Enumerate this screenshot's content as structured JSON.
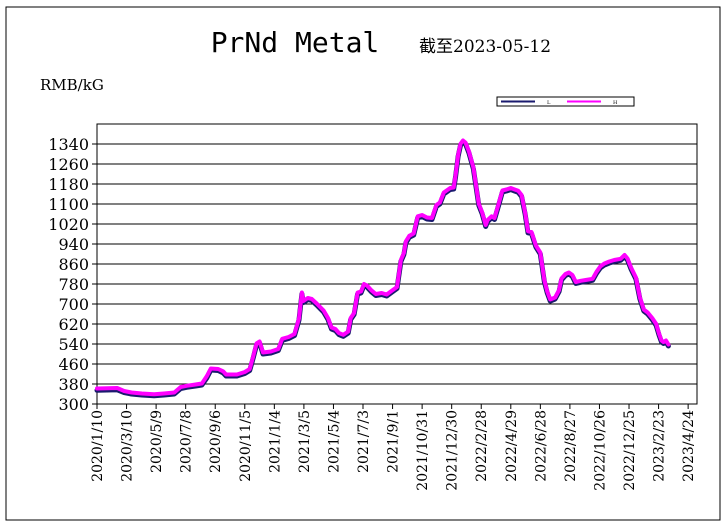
{
  "chart_data": {
    "type": "line",
    "title": "PrNd Metal",
    "subtitle": "截至2023-05-12",
    "ylabel": "RMB/kG",
    "ylim": [
      300,
      1420
    ],
    "yticks": [
      300,
      380,
      460,
      540,
      620,
      700,
      780,
      860,
      940,
      1020,
      1100,
      1180,
      1260,
      1340
    ],
    "xlim": [
      "2020-01-10",
      "2023-05-12"
    ],
    "xticks": [
      "2020/1/10",
      "2020/3/10",
      "2020/5/9",
      "2020/7/8",
      "2020/9/6",
      "2020/11/5",
      "2021/1/4",
      "2021/3/5",
      "2021/5/4",
      "2021/7/3",
      "2021/9/1",
      "2021/10/31",
      "2021/12/30",
      "2022/2/28",
      "2022/4/29",
      "2022/6/28",
      "2022/8/27",
      "2022/10/26",
      "2022/12/25",
      "2023/2/23",
      "2023/4/24"
    ],
    "grid": true,
    "legend_position": "top-right",
    "series": [
      {
        "name": "L",
        "color": "#1a1a6e",
        "points": [
          [
            "2020-01-10",
            355
          ],
          [
            "2020-02-20",
            357
          ],
          [
            "2020-03-05",
            346
          ],
          [
            "2020-03-20",
            340
          ],
          [
            "2020-04-10",
            336
          ],
          [
            "2020-05-05",
            333
          ],
          [
            "2020-05-25",
            336
          ],
          [
            "2020-06-15",
            340
          ],
          [
            "2020-06-28",
            362
          ],
          [
            "2020-07-10",
            367
          ],
          [
            "2020-07-28",
            372
          ],
          [
            "2020-08-10",
            376
          ],
          [
            "2020-08-20",
            405
          ],
          [
            "2020-08-28",
            436
          ],
          [
            "2020-09-12",
            434
          ],
          [
            "2020-09-22",
            425
          ],
          [
            "2020-09-28",
            412
          ],
          [
            "2020-10-20",
            412
          ],
          [
            "2020-11-05",
            422
          ],
          [
            "2020-11-15",
            434
          ],
          [
            "2020-11-22",
            484
          ],
          [
            "2020-11-29",
            537
          ],
          [
            "2020-12-05",
            544
          ],
          [
            "2020-12-12",
            500
          ],
          [
            "2020-12-28",
            504
          ],
          [
            "2021-01-12",
            514
          ],
          [
            "2021-01-20",
            555
          ],
          [
            "2021-02-02",
            562
          ],
          [
            "2021-02-14",
            574
          ],
          [
            "2021-02-23",
            636
          ],
          [
            "2021-03-01",
            740
          ],
          [
            "2021-03-04",
            706
          ],
          [
            "2021-03-13",
            718
          ],
          [
            "2021-03-21",
            714
          ],
          [
            "2021-03-31",
            696
          ],
          [
            "2021-04-14",
            668
          ],
          [
            "2021-04-23",
            638
          ],
          [
            "2021-04-30",
            600
          ],
          [
            "2021-05-08",
            594
          ],
          [
            "2021-05-15",
            578
          ],
          [
            "2021-05-24",
            571
          ],
          [
            "2021-06-03",
            584
          ],
          [
            "2021-06-08",
            638
          ],
          [
            "2021-06-15",
            658
          ],
          [
            "2021-06-22",
            740
          ],
          [
            "2021-06-29",
            744
          ],
          [
            "2021-07-05",
            774
          ],
          [
            "2021-07-11",
            768
          ],
          [
            "2021-07-20",
            749
          ],
          [
            "2021-07-29",
            734
          ],
          [
            "2021-08-10",
            738
          ],
          [
            "2021-08-20",
            732
          ],
          [
            "2021-08-31",
            748
          ],
          [
            "2021-09-10",
            762
          ],
          [
            "2021-09-18",
            870
          ],
          [
            "2021-09-24",
            898
          ],
          [
            "2021-09-28",
            945
          ],
          [
            "2021-10-05",
            967
          ],
          [
            "2021-10-14",
            976
          ],
          [
            "2021-10-22",
            1045
          ],
          [
            "2021-10-31",
            1050
          ],
          [
            "2021-11-10",
            1040
          ],
          [
            "2021-11-20",
            1038
          ],
          [
            "2021-11-29",
            1090
          ],
          [
            "2021-12-06",
            1100
          ],
          [
            "2021-12-14",
            1140
          ],
          [
            "2021-12-27",
            1158
          ],
          [
            "2022-01-03",
            1160
          ],
          [
            "2022-01-07",
            1210
          ],
          [
            "2022-01-12",
            1290
          ],
          [
            "2022-01-17",
            1335
          ],
          [
            "2022-01-22",
            1348
          ],
          [
            "2022-01-27",
            1340
          ],
          [
            "2022-02-03",
            1305
          ],
          [
            "2022-02-12",
            1240
          ],
          [
            "2022-02-17",
            1175
          ],
          [
            "2022-02-23",
            1095
          ],
          [
            "2022-03-02",
            1060
          ],
          [
            "2022-03-09",
            1010
          ],
          [
            "2022-03-13",
            1030
          ],
          [
            "2022-03-21",
            1045
          ],
          [
            "2022-03-27",
            1038
          ],
          [
            "2022-04-05",
            1100
          ],
          [
            "2022-04-12",
            1148
          ],
          [
            "2022-04-20",
            1152
          ],
          [
            "2022-04-29",
            1158
          ],
          [
            "2022-05-07",
            1152
          ],
          [
            "2022-05-14",
            1147
          ],
          [
            "2022-05-21",
            1130
          ],
          [
            "2022-05-28",
            1060
          ],
          [
            "2022-06-03",
            985
          ],
          [
            "2022-06-10",
            982
          ],
          [
            "2022-06-19",
            928
          ],
          [
            "2022-06-28",
            900
          ],
          [
            "2022-07-06",
            790
          ],
          [
            "2022-07-12",
            745
          ],
          [
            "2022-07-18",
            712
          ],
          [
            "2022-07-28",
            720
          ],
          [
            "2022-08-05",
            750
          ],
          [
            "2022-08-10",
            796
          ],
          [
            "2022-08-18",
            814
          ],
          [
            "2022-08-25",
            820
          ],
          [
            "2022-09-01",
            810
          ],
          [
            "2022-09-08",
            782
          ],
          [
            "2022-09-18",
            787
          ],
          [
            "2022-09-28",
            790
          ],
          [
            "2022-10-12",
            795
          ],
          [
            "2022-10-20",
            823
          ],
          [
            "2022-10-28",
            845
          ],
          [
            "2022-11-05",
            856
          ],
          [
            "2022-11-15",
            864
          ],
          [
            "2022-11-25",
            870
          ],
          [
            "2022-12-08",
            875
          ],
          [
            "2022-12-16",
            890
          ],
          [
            "2022-12-22",
            876
          ],
          [
            "2022-12-29",
            840
          ],
          [
            "2023-01-08",
            800
          ],
          [
            "2023-01-16",
            720
          ],
          [
            "2023-01-24",
            672
          ],
          [
            "2023-02-01",
            660
          ],
          [
            "2023-02-10",
            638
          ],
          [
            "2023-02-18",
            615
          ],
          [
            "2023-02-24",
            575
          ],
          [
            "2023-03-01",
            548
          ],
          [
            "2023-03-05",
            542
          ],
          [
            "2023-03-10",
            548
          ],
          [
            "2023-03-15",
            532
          ]
        ]
      },
      {
        "name": "H",
        "color": "#ff00ff",
        "points": [
          [
            "2020-01-10",
            362
          ],
          [
            "2020-02-20",
            364
          ],
          [
            "2020-03-05",
            352
          ],
          [
            "2020-03-20",
            346
          ],
          [
            "2020-04-10",
            342
          ],
          [
            "2020-05-05",
            339
          ],
          [
            "2020-05-25",
            342
          ],
          [
            "2020-06-15",
            346
          ],
          [
            "2020-06-28",
            368
          ],
          [
            "2020-07-10",
            373
          ],
          [
            "2020-07-28",
            378
          ],
          [
            "2020-08-10",
            382
          ],
          [
            "2020-08-20",
            412
          ],
          [
            "2020-08-28",
            442
          ],
          [
            "2020-09-12",
            440
          ],
          [
            "2020-09-22",
            431
          ],
          [
            "2020-09-28",
            418
          ],
          [
            "2020-10-20",
            418
          ],
          [
            "2020-11-05",
            428
          ],
          [
            "2020-11-15",
            440
          ],
          [
            "2020-11-22",
            490
          ],
          [
            "2020-11-29",
            543
          ],
          [
            "2020-12-05",
            550
          ],
          [
            "2020-12-12",
            506
          ],
          [
            "2020-12-28",
            510
          ],
          [
            "2021-01-12",
            520
          ],
          [
            "2021-01-20",
            561
          ],
          [
            "2021-02-02",
            568
          ],
          [
            "2021-02-14",
            580
          ],
          [
            "2021-02-23",
            642
          ],
          [
            "2021-03-01",
            746
          ],
          [
            "2021-03-04",
            712
          ],
          [
            "2021-03-13",
            724
          ],
          [
            "2021-03-21",
            720
          ],
          [
            "2021-03-31",
            702
          ],
          [
            "2021-04-14",
            674
          ],
          [
            "2021-04-23",
            644
          ],
          [
            "2021-04-30",
            606
          ],
          [
            "2021-05-08",
            600
          ],
          [
            "2021-05-15",
            584
          ],
          [
            "2021-05-24",
            577
          ],
          [
            "2021-06-03",
            590
          ],
          [
            "2021-06-08",
            644
          ],
          [
            "2021-06-15",
            664
          ],
          [
            "2021-06-22",
            746
          ],
          [
            "2021-06-29",
            750
          ],
          [
            "2021-07-05",
            780
          ],
          [
            "2021-07-11",
            774
          ],
          [
            "2021-07-20",
            755
          ],
          [
            "2021-07-29",
            740
          ],
          [
            "2021-08-10",
            744
          ],
          [
            "2021-08-20",
            738
          ],
          [
            "2021-08-31",
            754
          ],
          [
            "2021-09-10",
            768
          ],
          [
            "2021-09-18",
            876
          ],
          [
            "2021-09-24",
            904
          ],
          [
            "2021-09-28",
            951
          ],
          [
            "2021-10-05",
            973
          ],
          [
            "2021-10-14",
            982
          ],
          [
            "2021-10-22",
            1051
          ],
          [
            "2021-10-31",
            1056
          ],
          [
            "2021-11-10",
            1046
          ],
          [
            "2021-11-20",
            1044
          ],
          [
            "2021-11-29",
            1096
          ],
          [
            "2021-12-06",
            1106
          ],
          [
            "2021-12-14",
            1146
          ],
          [
            "2021-12-27",
            1164
          ],
          [
            "2022-01-03",
            1166
          ],
          [
            "2022-01-07",
            1216
          ],
          [
            "2022-01-12",
            1296
          ],
          [
            "2022-01-17",
            1341
          ],
          [
            "2022-01-22",
            1354
          ],
          [
            "2022-01-27",
            1346
          ],
          [
            "2022-02-03",
            1311
          ],
          [
            "2022-02-12",
            1246
          ],
          [
            "2022-02-17",
            1181
          ],
          [
            "2022-02-23",
            1101
          ],
          [
            "2022-03-02",
            1066
          ],
          [
            "2022-03-09",
            1016
          ],
          [
            "2022-03-13",
            1036
          ],
          [
            "2022-03-21",
            1051
          ],
          [
            "2022-03-27",
            1044
          ],
          [
            "2022-04-05",
            1106
          ],
          [
            "2022-04-12",
            1154
          ],
          [
            "2022-04-20",
            1158
          ],
          [
            "2022-04-29",
            1164
          ],
          [
            "2022-05-07",
            1158
          ],
          [
            "2022-05-14",
            1153
          ],
          [
            "2022-05-21",
            1136
          ],
          [
            "2022-05-28",
            1066
          ],
          [
            "2022-06-03",
            991
          ],
          [
            "2022-06-10",
            988
          ],
          [
            "2022-06-19",
            934
          ],
          [
            "2022-06-28",
            906
          ],
          [
            "2022-07-06",
            796
          ],
          [
            "2022-07-12",
            751
          ],
          [
            "2022-07-18",
            718
          ],
          [
            "2022-07-28",
            726
          ],
          [
            "2022-08-05",
            756
          ],
          [
            "2022-08-10",
            802
          ],
          [
            "2022-08-18",
            820
          ],
          [
            "2022-08-25",
            826
          ],
          [
            "2022-09-01",
            816
          ],
          [
            "2022-09-08",
            788
          ],
          [
            "2022-09-18",
            793
          ],
          [
            "2022-09-28",
            796
          ],
          [
            "2022-10-12",
            801
          ],
          [
            "2022-10-20",
            829
          ],
          [
            "2022-10-28",
            851
          ],
          [
            "2022-11-05",
            862
          ],
          [
            "2022-11-15",
            870
          ],
          [
            "2022-11-25",
            876
          ],
          [
            "2022-12-08",
            881
          ],
          [
            "2022-12-16",
            896
          ],
          [
            "2022-12-22",
            882
          ],
          [
            "2022-12-29",
            846
          ],
          [
            "2023-01-08",
            806
          ],
          [
            "2023-01-16",
            726
          ],
          [
            "2023-01-24",
            678
          ],
          [
            "2023-02-01",
            666
          ],
          [
            "2023-02-10",
            644
          ],
          [
            "2023-02-18",
            621
          ],
          [
            "2023-02-24",
            581
          ],
          [
            "2023-03-01",
            554
          ],
          [
            "2023-03-05",
            548
          ],
          [
            "2023-03-10",
            554
          ],
          [
            "2023-03-15",
            538
          ]
        ]
      }
    ]
  }
}
